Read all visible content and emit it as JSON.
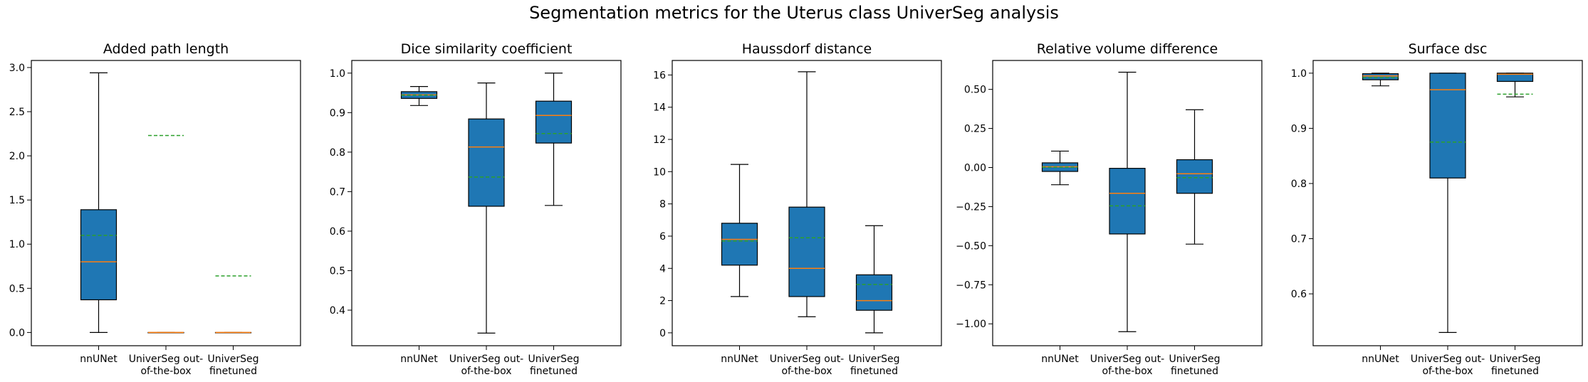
{
  "suptitle": "Segmentation metrics for the Uterus class UniverSeg analysis",
  "colors": {
    "box": "#1f77b4",
    "median": "#ff7f0e",
    "mean": "#2ca02c"
  },
  "chart_data": [
    {
      "type": "box",
      "title": "Added path length",
      "categories": [
        "nnUNet",
        "UniverSeg out-\nof-the-box",
        "UniverSeg\nfinetuned"
      ],
      "ylim": [
        -0.15,
        3.08
      ],
      "yticks": [
        0.0,
        0.5,
        1.0,
        1.5,
        2.0,
        2.5,
        3.0
      ],
      "yticklabels": [
        "0.0",
        "0.5",
        "1.0",
        "1.5",
        "2.0",
        "2.5",
        "3.0"
      ],
      "boxes": [
        {
          "whislo": 0.0,
          "q1": 0.37,
          "med": 0.8,
          "q3": 1.39,
          "whishi": 2.94,
          "mean": 1.1
        },
        {
          "whislo": 0.0,
          "q1": 0.0,
          "med": 0.0,
          "q3": 0.0,
          "whishi": 0.0,
          "mean": 2.23
        },
        {
          "whislo": 0.0,
          "q1": 0.0,
          "med": 0.0,
          "q3": 0.0,
          "whishi": 0.0,
          "mean": 0.64
        }
      ]
    },
    {
      "type": "box",
      "title": "Dice similarity coefficient",
      "categories": [
        "nnUNet",
        "UniverSeg out-\nof-the-box",
        "UniverSeg\nfinetuned"
      ],
      "ylim": [
        0.31,
        1.032
      ],
      "yticks": [
        0.4,
        0.5,
        0.6,
        0.7,
        0.8,
        0.9,
        1.0
      ],
      "yticklabels": [
        "0.4",
        "0.5",
        "0.6",
        "0.7",
        "0.8",
        "0.9",
        "1.0"
      ],
      "boxes": [
        {
          "whislo": 0.918,
          "q1": 0.936,
          "med": 0.945,
          "q3": 0.953,
          "whishi": 0.966,
          "mean": 0.944
        },
        {
          "whislo": 0.342,
          "q1": 0.663,
          "med": 0.813,
          "q3": 0.884,
          "whishi": 0.975,
          "mean": 0.737
        },
        {
          "whislo": 0.665,
          "q1": 0.823,
          "med": 0.893,
          "q3": 0.929,
          "whishi": 1.0,
          "mean": 0.847
        }
      ]
    },
    {
      "type": "box",
      "title": "Haussdorf distance",
      "categories": [
        "nnUNet",
        "UniverSeg out-\nof-the-box",
        "UniverSeg\nfinetuned"
      ],
      "ylim": [
        -0.8,
        16.9
      ],
      "yticks": [
        0,
        2,
        4,
        6,
        8,
        10,
        12,
        14,
        16
      ],
      "yticklabels": [
        "0",
        "2",
        "4",
        "6",
        "8",
        "10",
        "12",
        "14",
        "16"
      ],
      "boxes": [
        {
          "whislo": 2.25,
          "q1": 4.2,
          "med": 5.8,
          "q3": 6.8,
          "whishi": 10.45,
          "mean": 5.7
        },
        {
          "whislo": 1.0,
          "q1": 2.25,
          "med": 4.0,
          "q3": 7.8,
          "whishi": 16.2,
          "mean": 5.9
        },
        {
          "whislo": 0.0,
          "q1": 1.4,
          "med": 2.0,
          "q3": 3.6,
          "whishi": 6.65,
          "mean": 3.0
        }
      ]
    },
    {
      "type": "box",
      "title": "Relative volume difference",
      "categories": [
        "nnUNet",
        "UniverSeg out-\nof-the-box",
        "UniverSeg\nfinetuned"
      ],
      "ylim": [
        -1.14,
        0.685
      ],
      "yticks": [
        0.5,
        0.25,
        0.0,
        -0.25,
        -0.5,
        -0.75,
        -1.0
      ],
      "yticklabels": [
        "0.50",
        "0.25",
        "0.00",
        "−0.25",
        "−0.50",
        "−0.75",
        "−1.00"
      ],
      "boxes": [
        {
          "whislo": -0.11,
          "q1": -0.025,
          "med": 0.005,
          "q3": 0.03,
          "whishi": 0.105,
          "mean": 0.002
        },
        {
          "whislo": -1.05,
          "q1": -0.425,
          "med": -0.165,
          "q3": -0.005,
          "whishi": 0.61,
          "mean": -0.245
        },
        {
          "whislo": -0.49,
          "q1": -0.165,
          "med": -0.04,
          "q3": 0.05,
          "whishi": 0.37,
          "mean": -0.065
        }
      ]
    },
    {
      "type": "box",
      "title": "Surface dsc",
      "categories": [
        "nnUNet",
        "UniverSeg out-\nof-the-box",
        "UniverSeg\nfinetuned"
      ],
      "ylim": [
        0.506,
        1.023
      ],
      "yticks": [
        0.6,
        0.7,
        0.8,
        0.9,
        1.0
      ],
      "yticklabels": [
        "0.6",
        "0.7",
        "0.8",
        "0.9",
        "1.0"
      ],
      "boxes": [
        {
          "whislo": 0.977,
          "q1": 0.988,
          "med": 0.995,
          "q3": 0.999,
          "whishi": 1.0,
          "mean": 0.992
        },
        {
          "whislo": 0.53,
          "q1": 0.81,
          "med": 0.97,
          "q3": 1.0,
          "whishi": 1.0,
          "mean": 0.875
        },
        {
          "whislo": 0.957,
          "q1": 0.985,
          "med": 0.998,
          "q3": 1.0,
          "whishi": 1.0,
          "mean": 0.962
        }
      ]
    }
  ]
}
